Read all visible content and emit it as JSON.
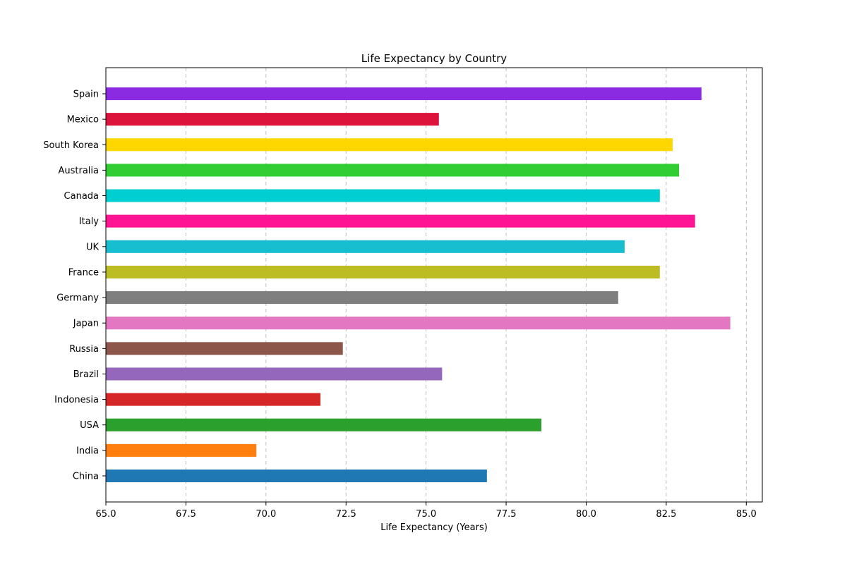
{
  "chart_data": {
    "type": "bar",
    "orientation": "horizontal",
    "title": "Life Expectancy by Country",
    "xlabel": "Life Expectancy (Years)",
    "ylabel": "",
    "xlim": [
      65.0,
      85.5
    ],
    "xticks": [
      "65.0",
      "67.5",
      "70.0",
      "72.5",
      "75.0",
      "77.5",
      "80.0",
      "82.5",
      "85.0"
    ],
    "grid": "x-dashed",
    "categories": [
      "China",
      "India",
      "USA",
      "Indonesia",
      "Brazil",
      "Russia",
      "Japan",
      "Germany",
      "France",
      "UK",
      "Italy",
      "Canada",
      "Australia",
      "South Korea",
      "Mexico",
      "Spain"
    ],
    "values": [
      76.9,
      69.7,
      78.6,
      71.7,
      75.5,
      72.4,
      84.5,
      81.0,
      82.3,
      81.2,
      83.4,
      82.3,
      82.9,
      82.7,
      75.4,
      83.6
    ],
    "colors": [
      "#1f77b4",
      "#ff7f0e",
      "#2ca02c",
      "#d62728",
      "#9467bd",
      "#8c564b",
      "#e377c2",
      "#7f7f7f",
      "#bcbd22",
      "#17becf",
      "#ff1493",
      "#00ced1",
      "#32cd32",
      "#ffd700",
      "#dc143c",
      "#8a2be2"
    ]
  }
}
